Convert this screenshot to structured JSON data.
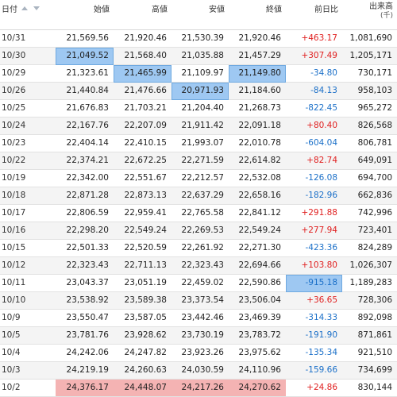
{
  "headers": {
    "date": "日付",
    "open": "始値",
    "high": "高値",
    "low": "安値",
    "close": "終値",
    "change": "前日比",
    "volume": "出来高",
    "volume_unit": "(千)"
  },
  "rows": [
    {
      "date": "10/31",
      "open": "21,569.56",
      "high": "21,920.46",
      "low": "21,530.39",
      "close": "21,920.46",
      "change": "+463.17",
      "volume": "1,081,690"
    },
    {
      "date": "10/30",
      "open": "21,049.52",
      "high": "21,568.40",
      "low": "21,035.88",
      "close": "21,457.29",
      "change": "+307.49",
      "volume": "1,205,171"
    },
    {
      "date": "10/29",
      "open": "21,323.61",
      "high": "21,465.99",
      "low": "21,109.97",
      "close": "21,149.80",
      "change": "-34.80",
      "volume": "730,171"
    },
    {
      "date": "10/26",
      "open": "21,440.84",
      "high": "21,476.66",
      "low": "20,971.93",
      "close": "21,184.60",
      "change": "-84.13",
      "volume": "958,103"
    },
    {
      "date": "10/25",
      "open": "21,676.83",
      "high": "21,703.21",
      "low": "21,204.40",
      "close": "21,268.73",
      "change": "-822.45",
      "volume": "965,272"
    },
    {
      "date": "10/24",
      "open": "22,167.76",
      "high": "22,207.09",
      "low": "21,911.42",
      "close": "22,091.18",
      "change": "+80.40",
      "volume": "826,568"
    },
    {
      "date": "10/23",
      "open": "22,404.14",
      "high": "22,410.15",
      "low": "21,993.07",
      "close": "22,010.78",
      "change": "-604.04",
      "volume": "806,781"
    },
    {
      "date": "10/22",
      "open": "22,374.21",
      "high": "22,672.25",
      "low": "22,271.59",
      "close": "22,614.82",
      "change": "+82.74",
      "volume": "649,091"
    },
    {
      "date": "10/19",
      "open": "22,342.00",
      "high": "22,551.67",
      "low": "22,212.57",
      "close": "22,532.08",
      "change": "-126.08",
      "volume": "694,700"
    },
    {
      "date": "10/18",
      "open": "22,871.28",
      "high": "22,873.13",
      "low": "22,637.29",
      "close": "22,658.16",
      "change": "-182.96",
      "volume": "662,836"
    },
    {
      "date": "10/17",
      "open": "22,806.59",
      "high": "22,959.41",
      "low": "22,765.58",
      "close": "22,841.12",
      "change": "+291.88",
      "volume": "742,996"
    },
    {
      "date": "10/16",
      "open": "22,298.20",
      "high": "22,549.24",
      "low": "22,269.53",
      "close": "22,549.24",
      "change": "+277.94",
      "volume": "723,401"
    },
    {
      "date": "10/15",
      "open": "22,501.33",
      "high": "22,520.59",
      "low": "22,261.92",
      "close": "22,271.30",
      "change": "-423.36",
      "volume": "824,289"
    },
    {
      "date": "10/12",
      "open": "22,323.43",
      "high": "22,711.13",
      "low": "22,323.43",
      "close": "22,694.66",
      "change": "+103.80",
      "volume": "1,026,307"
    },
    {
      "date": "10/11",
      "open": "23,043.37",
      "high": "23,051.19",
      "low": "22,459.02",
      "close": "22,590.86",
      "change": "-915.18",
      "volume": "1,189,283"
    },
    {
      "date": "10/10",
      "open": "23,538.92",
      "high": "23,589.38",
      "low": "23,373.54",
      "close": "23,506.04",
      "change": "+36.65",
      "volume": "728,306"
    },
    {
      "date": "10/9",
      "open": "23,550.47",
      "high": "23,587.05",
      "low": "23,442.46",
      "close": "23,469.39",
      "change": "-314.33",
      "volume": "892,098"
    },
    {
      "date": "10/5",
      "open": "23,781.76",
      "high": "23,928.62",
      "low": "23,730.19",
      "close": "23,783.72",
      "change": "-191.90",
      "volume": "871,861"
    },
    {
      "date": "10/4",
      "open": "24,242.06",
      "high": "24,247.82",
      "low": "23,923.26",
      "close": "23,975.62",
      "change": "-135.34",
      "volume": "921,510"
    },
    {
      "date": "10/3",
      "open": "24,219.19",
      "high": "24,260.63",
      "low": "24,030.59",
      "close": "24,110.96",
      "change": "-159.66",
      "volume": "734,699"
    },
    {
      "date": "10/2",
      "open": "24,376.17",
      "high": "24,448.07",
      "low": "24,217.26",
      "close": "24,270.62",
      "change": "+24.86",
      "volume": "830,144"
    }
  ],
  "highlights": {
    "blue": [
      [
        1,
        "open"
      ],
      [
        2,
        "high"
      ],
      [
        2,
        "close"
      ],
      [
        3,
        "low"
      ],
      [
        14,
        "change"
      ]
    ],
    "red": [
      [
        20,
        "open"
      ],
      [
        20,
        "high"
      ],
      [
        20,
        "low"
      ],
      [
        20,
        "close"
      ]
    ]
  },
  "colors": {
    "positive": "#e02020",
    "negative": "#1a6fc8",
    "highlight_blue": "#9ec8f2",
    "highlight_red": "#f4b3b3"
  }
}
